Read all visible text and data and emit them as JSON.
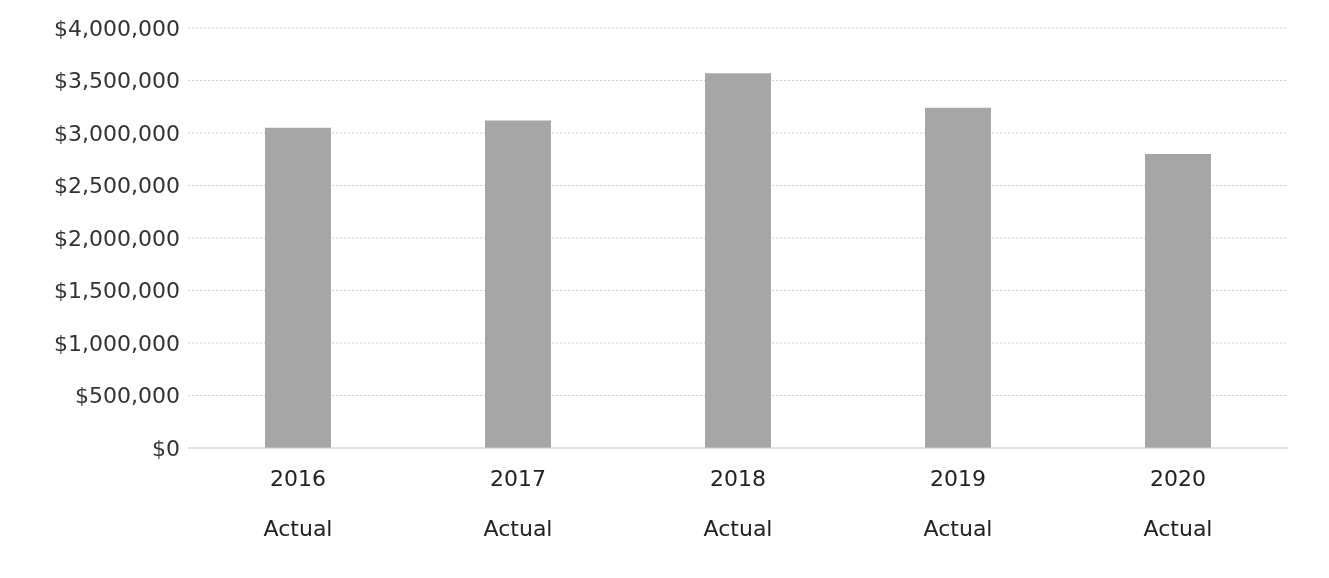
{
  "chart_data": {
    "type": "bar",
    "categories": [
      "2016 Actual",
      "2017 Actual",
      "2018 Actual",
      "2019 Actual",
      "2020 Actual"
    ],
    "values": [
      3050000,
      3120000,
      3570000,
      3240000,
      2800000
    ],
    "color": "#a6a6a6",
    "ylim": [
      0,
      4000000
    ],
    "yticks": [
      {
        "value": 0,
        "label": "$0"
      },
      {
        "value": 500000,
        "label": "$500,000"
      },
      {
        "value": 1000000,
        "label": "$1,000,000"
      },
      {
        "value": 1500000,
        "label": "$1,500,000"
      },
      {
        "value": 2000000,
        "label": "$2,000,000"
      },
      {
        "value": 2500000,
        "label": "$2,500,000"
      },
      {
        "value": 3000000,
        "label": "$3,000,000"
      },
      {
        "value": 3500000,
        "label": "$3,500,000"
      },
      {
        "value": 4000000,
        "label": "$4,000,000"
      }
    ],
    "grid": "y"
  }
}
